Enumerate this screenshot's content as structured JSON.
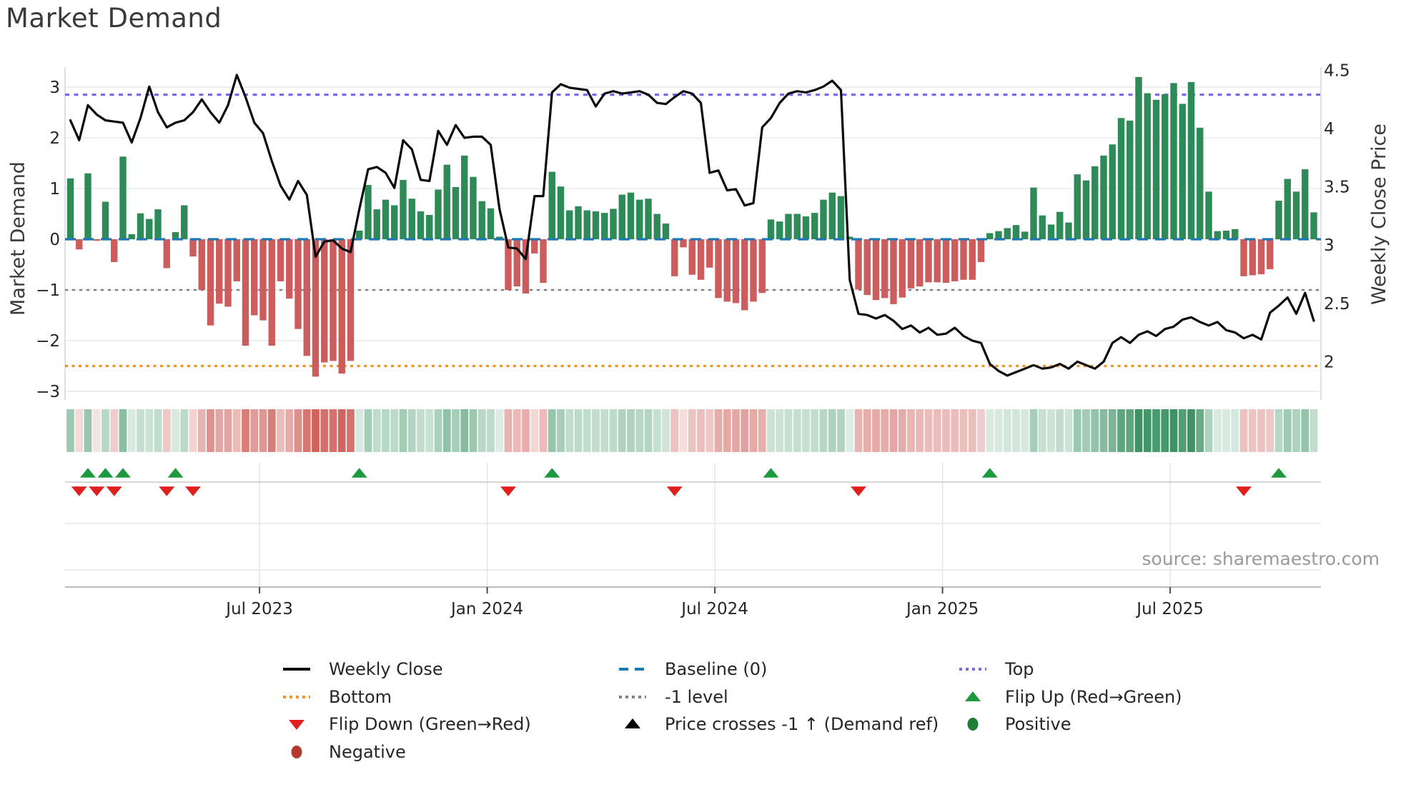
{
  "title": "Market Demand",
  "source": "source: sharemaestro.com",
  "colors": {
    "green_bar": "#2e8b57",
    "red_bar": "#cd5c5c",
    "price_line": "#0a0a0a",
    "baseline": "#1f77b4",
    "top_level": "#7b68ee",
    "bottom_level": "#ef9322",
    "minus1_level": "#808080",
    "flip_up": "#1d9a3d",
    "flip_down": "#e01f1f",
    "positive_dot": "#1e7e34",
    "negative_dot": "#b03a2e",
    "grid": "#e9e9f1",
    "spine": "#d9d9e2",
    "tick_text": "#262626",
    "axis_title_text": "#3a3a3a",
    "muted_text": "#9a9a9a"
  },
  "chart_data": {
    "type": "combo",
    "title": "Market Demand",
    "weeks": 143,
    "left_axis": {
      "label": "Market Demand",
      "tick_labels": [
        "3",
        "2",
        "1",
        "0",
        "−1",
        "−2",
        "−3"
      ],
      "tick_values": [
        3,
        2,
        1,
        0,
        -1,
        -2,
        -3
      ],
      "range": [
        -3.4,
        3.4
      ]
    },
    "right_axis": {
      "label": "Weekly Close Price",
      "tick_labels": [
        "4.5",
        "4",
        "3.5",
        "3",
        "2.5",
        "2"
      ],
      "tick_values": [
        4.5,
        4,
        3.5,
        3,
        2.5,
        2
      ],
      "range": [
        1.8,
        4.6
      ]
    },
    "x_axis": {
      "tick_labels": [
        "Jul 2023",
        "Jan 2024",
        "Jul 2024",
        "Jan 2025",
        "Jul 2025"
      ],
      "tick_week_positions": [
        21.6,
        47.6,
        73.6,
        99.6,
        125.6
      ]
    },
    "levels": {
      "top": 2.85,
      "baseline": 0,
      "minus1": -1,
      "bottom": -2.5
    },
    "series": [
      {
        "name": "Market Demand",
        "type": "bar",
        "axis": "left",
        "values": [
          1.2,
          -0.2,
          1.3,
          -0.03,
          0.74,
          -0.45,
          1.63,
          0.1,
          0.51,
          0.4,
          0.59,
          -0.57,
          0.14,
          0.67,
          -0.34,
          -1.0,
          -1.7,
          -1.27,
          -1.33,
          -0.83,
          -2.1,
          -1.5,
          -1.6,
          -2.1,
          -0.83,
          -1.17,
          -1.77,
          -2.3,
          -2.71,
          -2.43,
          -2.4,
          -2.65,
          -2.4,
          0.17,
          1.07,
          0.59,
          0.78,
          0.67,
          1.17,
          0.8,
          0.55,
          0.48,
          0.98,
          1.47,
          1.03,
          1.65,
          1.23,
          0.75,
          0.61,
          0.05,
          -1.0,
          -0.93,
          -1.07,
          -0.28,
          -0.86,
          1.33,
          1.04,
          0.57,
          0.65,
          0.57,
          0.55,
          0.52,
          0.6,
          0.88,
          0.92,
          0.78,
          0.8,
          0.5,
          0.31,
          -0.73,
          -0.16,
          -0.7,
          -0.8,
          -0.56,
          -1.16,
          -1.23,
          -1.26,
          -1.4,
          -1.23,
          -1.06,
          0.39,
          0.35,
          0.5,
          0.5,
          0.45,
          0.52,
          0.78,
          0.92,
          0.85,
          0.05,
          -0.99,
          -1.1,
          -1.2,
          -1.16,
          -1.28,
          -1.15,
          -0.97,
          -0.93,
          -0.85,
          -0.85,
          -0.86,
          -0.83,
          -0.8,
          -0.8,
          -0.45,
          0.12,
          0.16,
          0.22,
          0.28,
          0.15,
          1.02,
          0.47,
          0.29,
          0.54,
          0.33,
          1.28,
          1.16,
          1.44,
          1.65,
          1.87,
          2.39,
          2.34,
          3.2,
          2.88,
          2.75,
          2.86,
          3.08,
          2.67,
          3.1,
          2.2,
          0.94,
          0.16,
          0.17,
          0.2,
          -0.73,
          -0.71,
          -0.69,
          -0.59,
          0.76,
          1.19,
          0.94,
          1.38,
          0.53
        ]
      },
      {
        "name": "Weekly Close",
        "type": "line",
        "axis": "right",
        "values": [
          4.07,
          3.9,
          4.2,
          4.12,
          4.07,
          4.06,
          4.05,
          3.88,
          4.09,
          4.36,
          4.14,
          4.01,
          4.05,
          4.07,
          4.14,
          4.25,
          4.14,
          4.05,
          4.2,
          4.46,
          4.27,
          4.05,
          3.96,
          3.72,
          3.51,
          3.39,
          3.55,
          3.43,
          2.9,
          3.03,
          3.04,
          2.97,
          2.94,
          3.31,
          3.65,
          3.67,
          3.62,
          3.49,
          3.9,
          3.82,
          3.56,
          3.55,
          3.98,
          3.86,
          4.03,
          3.92,
          3.93,
          3.93,
          3.86,
          3.31,
          2.98,
          2.97,
          2.88,
          3.42,
          3.42,
          4.31,
          4.38,
          4.35,
          4.34,
          4.33,
          4.19,
          4.3,
          4.32,
          4.3,
          4.31,
          4.32,
          4.29,
          4.22,
          4.21,
          4.27,
          4.32,
          4.3,
          4.22,
          3.62,
          3.64,
          3.47,
          3.48,
          3.34,
          3.36,
          4.01,
          4.09,
          4.22,
          4.3,
          4.32,
          4.31,
          4.33,
          4.36,
          4.41,
          4.33,
          2.7,
          2.41,
          2.4,
          2.37,
          2.4,
          2.35,
          2.28,
          2.31,
          2.25,
          2.29,
          2.23,
          2.24,
          2.29,
          2.22,
          2.18,
          2.16,
          1.98,
          1.92,
          1.88,
          1.91,
          1.94,
          1.97,
          1.94,
          1.95,
          1.98,
          1.94,
          2.0,
          1.97,
          1.94,
          2.0,
          2.16,
          2.21,
          2.16,
          2.23,
          2.26,
          2.22,
          2.28,
          2.3,
          2.36,
          2.38,
          2.34,
          2.31,
          2.34,
          2.27,
          2.25,
          2.2,
          2.23,
          2.19,
          2.42,
          2.48,
          2.55,
          2.41,
          2.59,
          2.35
        ]
      }
    ],
    "heatmap": {
      "note": "strip mirrors Market Demand bar values (green positive, red negative, intensity by magnitude)"
    },
    "flip_up_weeks": [
      2,
      4,
      6,
      12,
      33,
      55,
      80,
      105,
      138
    ],
    "flip_down_weeks": [
      1,
      3,
      5,
      11,
      14,
      50,
      69,
      90,
      134
    ],
    "price_cross_weeks": []
  },
  "legend": {
    "columns": [
      {
        "items": [
          {
            "symbol": "line-solid-black",
            "label": "Weekly Close"
          },
          {
            "symbol": "dotted-orange",
            "label": "Bottom"
          },
          {
            "symbol": "triangle-down-red",
            "label": "Flip Down (Green→Red)"
          },
          {
            "symbol": "circle-darkred",
            "label": "Negative"
          }
        ]
      },
      {
        "items": [
          {
            "symbol": "dashed-blue",
            "label": "Baseline (0)"
          },
          {
            "symbol": "dotted-gray",
            "label": "-1 level"
          },
          {
            "symbol": "triangle-up-black",
            "label": "Price crosses -1 ↑ (Demand ref)"
          }
        ]
      },
      {
        "items": [
          {
            "symbol": "dotted-purple",
            "label": "Top"
          },
          {
            "symbol": "triangle-up-green",
            "label": "Flip Up (Red→Green)"
          },
          {
            "symbol": "circle-green",
            "label": "Positive"
          }
        ]
      }
    ]
  }
}
